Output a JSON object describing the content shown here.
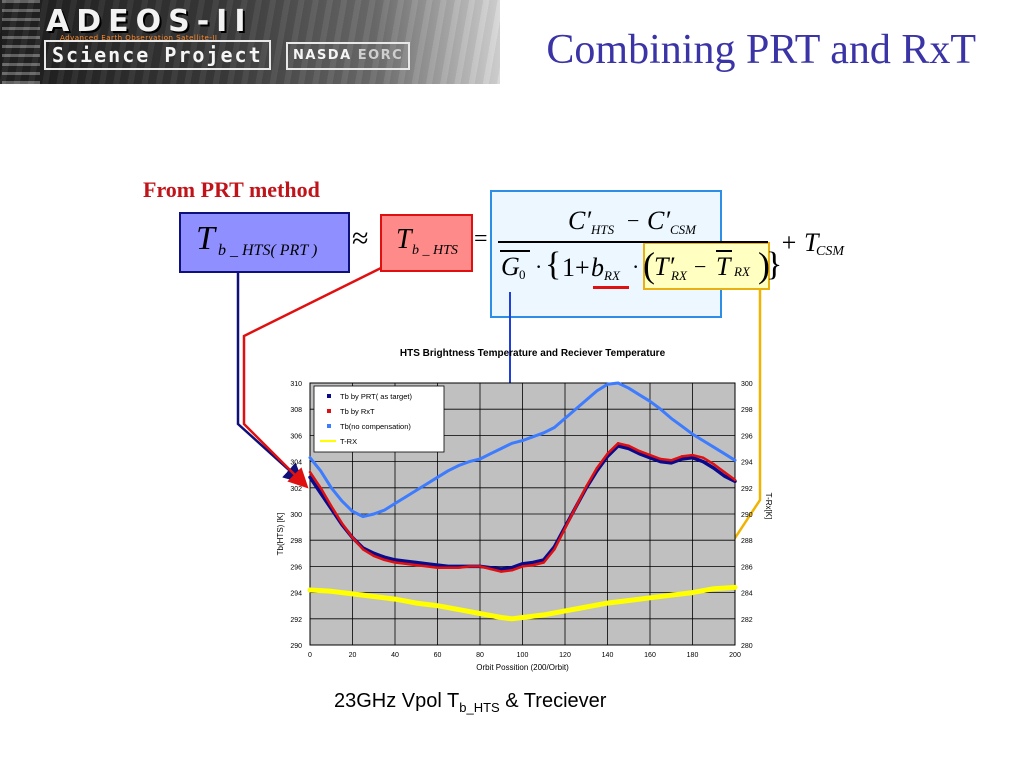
{
  "header": {
    "logo_main": "ADEOS-II",
    "logo_sub": "Advanced Earth Observation Satellite-II",
    "logo_project": "Science Project",
    "logo_org1": "NASDA",
    "logo_org2": "EORC",
    "title": "Combining PRT and RxT"
  },
  "annotation": {
    "method_label": "From PRT method"
  },
  "equation": {
    "lhs_symbol": "T",
    "lhs_subscript": "b _ HTS( PRT )",
    "approx": "≈",
    "rhs_symbol": "T",
    "rhs_subscript": "b _ HTS",
    "equals": "=",
    "num_c1": "C′",
    "num_sub1": "HTS",
    "num_minus": "−",
    "num_c2": "C′",
    "num_sub2": "CSM",
    "den_g": "G",
    "den_g_sub": "0",
    "den_dot": "·",
    "den_brace_open": "{",
    "den_one": "1+",
    "den_b": "b",
    "den_b_sub": "RX",
    "den_dot2": "·",
    "den_paren_open": "(",
    "den_t1": "T′",
    "den_t1_sub": "RX",
    "den_minus": "−",
    "den_t2": "T",
    "den_t2_sub": "RX",
    "den_paren_close": ")",
    "den_brace_close": "}",
    "tail": "+ T",
    "tail_sub": "CSM"
  },
  "chart_data": {
    "type": "line",
    "title": "HTS Brightness Temperature and Reciever Temperature",
    "xlabel": "Orbit Possition (200/Orbit)",
    "ylabel": "Tb(HTS) [K]",
    "y2label": "T-Rx[K]",
    "xlim": [
      0,
      200
    ],
    "ylim": [
      290,
      310
    ],
    "y2lim": [
      280,
      300
    ],
    "x_ticks": [
      "0",
      "20",
      "40",
      "60",
      "80",
      "100",
      "120",
      "140",
      "160",
      "180",
      "200"
    ],
    "y_ticks": [
      "290",
      "292",
      "294",
      "296",
      "298",
      "300",
      "302",
      "304",
      "306",
      "308",
      "310"
    ],
    "y2_ticks": [
      "280",
      "282",
      "284",
      "286",
      "288",
      "290",
      "292",
      "294",
      "296",
      "298",
      "300"
    ],
    "grid": true,
    "legend_position": "top-left",
    "series": [
      {
        "name": "Tb by PRT( as target)",
        "axis": "left",
        "color": "#0a0a8c",
        "x": [
          0,
          5,
          10,
          15,
          20,
          25,
          30,
          35,
          40,
          45,
          50,
          55,
          60,
          65,
          70,
          75,
          80,
          85,
          90,
          95,
          100,
          105,
          110,
          115,
          120,
          125,
          130,
          135,
          140,
          145,
          150,
          155,
          160,
          165,
          170,
          175,
          180,
          185,
          190,
          195,
          200
        ],
        "y": [
          302.8,
          301.6,
          300.4,
          299.2,
          298.2,
          297.4,
          297.0,
          296.7,
          296.5,
          296.4,
          296.3,
          296.2,
          296.1,
          296.0,
          296.0,
          296.0,
          296.0,
          295.9,
          295.8,
          295.9,
          296.2,
          296.3,
          296.5,
          297.5,
          299.0,
          300.5,
          302.0,
          303.3,
          304.4,
          305.2,
          305.0,
          304.6,
          304.3,
          304.0,
          303.9,
          304.2,
          304.3,
          304.0,
          303.5,
          302.9,
          302.5
        ]
      },
      {
        "name": "Tb by RxT",
        "axis": "left",
        "color": "#e01010",
        "x": [
          0,
          5,
          10,
          15,
          20,
          25,
          30,
          35,
          40,
          45,
          50,
          55,
          60,
          65,
          70,
          75,
          80,
          85,
          90,
          95,
          100,
          105,
          110,
          115,
          120,
          125,
          130,
          135,
          140,
          145,
          150,
          155,
          160,
          165,
          170,
          175,
          180,
          185,
          190,
          195,
          200
        ],
        "y": [
          303.2,
          302.0,
          300.6,
          299.3,
          298.2,
          297.3,
          296.8,
          296.5,
          296.3,
          296.2,
          296.1,
          296.0,
          295.9,
          295.9,
          295.9,
          296.0,
          296.0,
          295.8,
          295.6,
          295.7,
          296.0,
          296.1,
          296.3,
          297.3,
          298.9,
          300.5,
          302.1,
          303.5,
          304.6,
          305.4,
          305.2,
          304.8,
          304.5,
          304.2,
          304.1,
          304.4,
          304.5,
          304.3,
          303.8,
          303.2,
          302.6
        ]
      },
      {
        "name": "Tb(no compensation)",
        "axis": "left",
        "color": "#3d7bff",
        "x": [
          0,
          5,
          10,
          15,
          20,
          25,
          30,
          35,
          40,
          45,
          50,
          55,
          60,
          65,
          70,
          75,
          80,
          85,
          90,
          95,
          100,
          105,
          110,
          115,
          120,
          125,
          130,
          135,
          140,
          145,
          150,
          155,
          160,
          165,
          170,
          175,
          180,
          185,
          190,
          195,
          200
        ],
        "y": [
          304.3,
          303.3,
          302.0,
          301.0,
          300.2,
          299.8,
          300.0,
          300.3,
          300.8,
          301.3,
          301.8,
          302.3,
          302.8,
          303.3,
          303.7,
          304.0,
          304.2,
          304.6,
          305.0,
          305.4,
          305.6,
          305.9,
          306.2,
          306.6,
          307.3,
          308.0,
          308.7,
          309.4,
          309.9,
          310.0,
          309.6,
          309.1,
          308.6,
          308.0,
          307.3,
          306.7,
          306.1,
          305.6,
          305.1,
          304.6,
          304.1
        ]
      },
      {
        "name": "T-RX",
        "axis": "right",
        "color": "#ffff00",
        "x": [
          0,
          10,
          20,
          30,
          40,
          50,
          60,
          70,
          80,
          90,
          95,
          100,
          110,
          120,
          130,
          140,
          150,
          160,
          170,
          180,
          190,
          200
        ],
        "y": [
          284.2,
          284.1,
          283.9,
          283.7,
          283.5,
          283.2,
          283.0,
          282.7,
          282.4,
          282.1,
          282.0,
          282.1,
          282.3,
          282.6,
          282.9,
          283.2,
          283.4,
          283.6,
          283.8,
          284.0,
          284.3,
          284.4
        ]
      }
    ]
  },
  "caption": {
    "text_main": "23GHz Vpol   T",
    "text_sub": "b_HTS",
    "text_tail": " & Treciever"
  }
}
